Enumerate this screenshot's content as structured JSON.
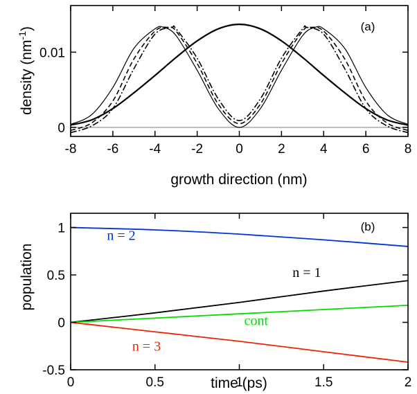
{
  "chart_data": [
    {
      "type": "line",
      "panel_label": "(a)",
      "xlabel": "growth direction (nm)",
      "ylabel_main": "density (nm",
      "ylabel_sup": "-1",
      "ylabel_close": ")",
      "xlim": [
        -8,
        8
      ],
      "ylim": [
        -0.0012,
        0.0162
      ],
      "xticks": [
        -8,
        -6,
        -4,
        -2,
        0,
        2,
        4,
        6,
        8
      ],
      "xtick_labels": [
        "-8",
        "-6",
        "-4",
        "-2",
        "0",
        "2",
        "4",
        "6",
        "8"
      ],
      "yticks": [
        0,
        0.01
      ],
      "ytick_labels": [
        "0",
        "0.01"
      ],
      "zero_line": true,
      "series": [
        {
          "style": "thick-solid",
          "x": [
            -8,
            -7,
            -6,
            -5,
            -4,
            -3,
            -2,
            -1,
            0,
            1,
            2,
            3,
            4,
            5,
            6,
            7,
            8
          ],
          "y": [
            0.0003,
            0.001,
            0.0025,
            0.0046,
            0.0069,
            0.0093,
            0.0115,
            0.0131,
            0.0137,
            0.0131,
            0.0115,
            0.0093,
            0.0069,
            0.0046,
            0.0025,
            0.001,
            0.0003
          ]
        },
        {
          "style": "thin-solid",
          "x": [
            -8,
            -7,
            -6,
            -5,
            -4,
            -3.6,
            -3,
            -2,
            -1,
            0,
            1,
            2,
            3,
            3.6,
            4,
            5,
            6,
            7,
            8
          ],
          "y": [
            0.0004,
            0.0017,
            0.0053,
            0.0105,
            0.0131,
            0.0133,
            0.0122,
            0.0076,
            0.0025,
            0.0,
            0.0025,
            0.0076,
            0.0122,
            0.0133,
            0.0131,
            0.0105,
            0.0053,
            0.0017,
            0.0004
          ]
        },
        {
          "style": "dashed",
          "x": [
            -8,
            -7,
            -6,
            -5,
            -4,
            -3.4,
            -3,
            -2,
            -1,
            0,
            1,
            2,
            3,
            3.4,
            4,
            5,
            6,
            7,
            8
          ],
          "y": [
            -0.0004,
            0.0006,
            0.0035,
            0.0091,
            0.0128,
            0.0133,
            0.0128,
            0.0085,
            0.0031,
            0.0005,
            0.0031,
            0.0085,
            0.0128,
            0.0133,
            0.0128,
            0.0091,
            0.0035,
            0.0006,
            -0.0004
          ]
        },
        {
          "style": "dash-dot",
          "x": [
            -8,
            -7,
            -6,
            -5,
            -4,
            -3.2,
            -3,
            -2,
            -1,
            0,
            1,
            2,
            3,
            3.2,
            4,
            5,
            6,
            7,
            8
          ],
          "y": [
            -0.0007,
            0.0002,
            0.0025,
            0.0078,
            0.0124,
            0.0133,
            0.0131,
            0.0092,
            0.0038,
            0.0009,
            0.0038,
            0.0092,
            0.0131,
            0.0133,
            0.0124,
            0.0078,
            0.0025,
            0.0002,
            -0.0007
          ]
        }
      ]
    },
    {
      "type": "line",
      "panel_label": "(b)",
      "xlabel": "time (ps)",
      "ylabel": "population",
      "xlim": [
        0,
        2
      ],
      "ylim": [
        -0.5,
        1.15
      ],
      "xticks": [
        0,
        0.5,
        1,
        1.5,
        2
      ],
      "xtick_labels": [
        "0",
        "0.5",
        "1",
        "1.5",
        "2"
      ],
      "yticks": [
        -0.5,
        0,
        0.5,
        1
      ],
      "ytick_labels": [
        "-0.5",
        "0",
        "0.5",
        "1"
      ],
      "series": [
        {
          "name": "n = 2",
          "color": "#0033dd",
          "x": [
            0,
            0.5,
            1,
            1.5,
            2
          ],
          "y": [
            1.0,
            0.975,
            0.93,
            0.87,
            0.8
          ]
        },
        {
          "name": "n = 1",
          "color": "#000000",
          "x": [
            0,
            0.5,
            1,
            1.5,
            2
          ],
          "y": [
            0.0,
            0.1,
            0.21,
            0.33,
            0.44
          ]
        },
        {
          "name": "cont",
          "color": "#00dd00",
          "x": [
            0,
            0.5,
            1,
            1.5,
            2
          ],
          "y": [
            0.0,
            0.045,
            0.09,
            0.135,
            0.18
          ]
        },
        {
          "name": "n = 3",
          "color": "#ee2200",
          "x": [
            0,
            0.5,
            1,
            1.5,
            2
          ],
          "y": [
            0.0,
            -0.1,
            -0.2,
            -0.31,
            -0.42
          ]
        }
      ]
    }
  ]
}
